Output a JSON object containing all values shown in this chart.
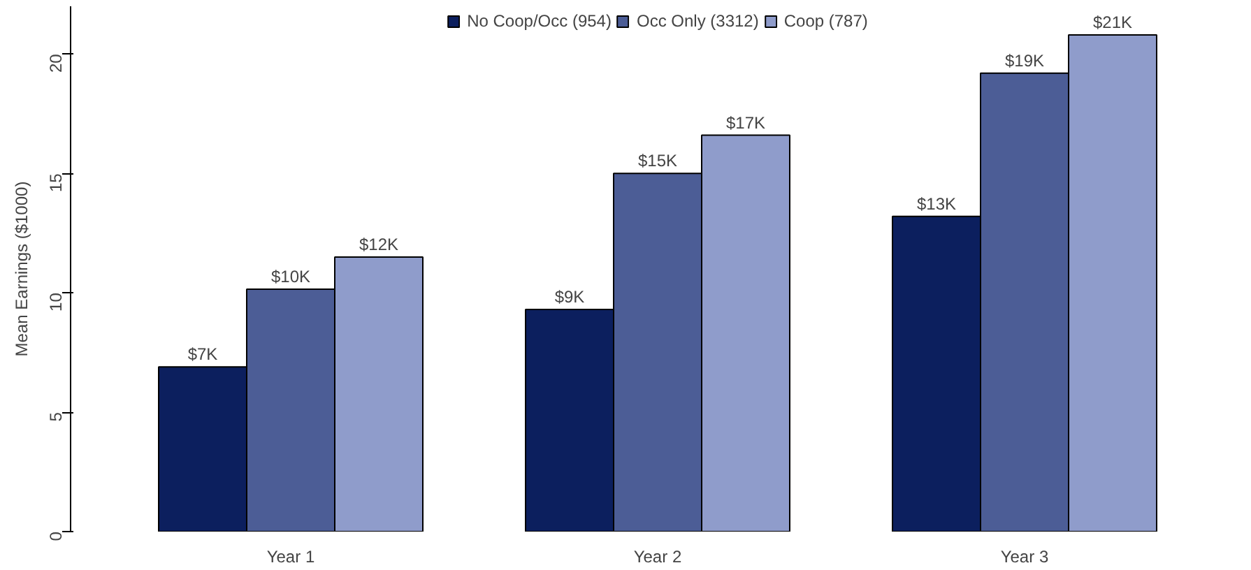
{
  "chart_data": {
    "type": "bar",
    "ylabel": "Mean Earnings ($1000)",
    "categories": [
      "Year 1",
      "Year 2",
      "Year 3"
    ],
    "series": [
      {
        "name": "No Coop/Occ (954)",
        "color": "#0c1f5e",
        "values": [
          6.9,
          9.3,
          13.2
        ],
        "value_labels": [
          "$7K",
          "$9K",
          "$13K"
        ]
      },
      {
        "name": "Occ Only (3312)",
        "color": "#4c5d96",
        "values": [
          10.15,
          15.0,
          19.2
        ],
        "value_labels": [
          "$10K",
          "$15K",
          "$19K"
        ]
      },
      {
        "name": "Coop (787)",
        "color": "#8f9ccb",
        "values": [
          11.5,
          16.6,
          20.8
        ],
        "value_labels": [
          "$12K",
          "$17K",
          "$21K"
        ]
      }
    ],
    "ylim": [
      0,
      22
    ],
    "yticks": [
      0,
      5,
      10,
      15,
      20
    ],
    "grid": false,
    "legend": "top"
  }
}
